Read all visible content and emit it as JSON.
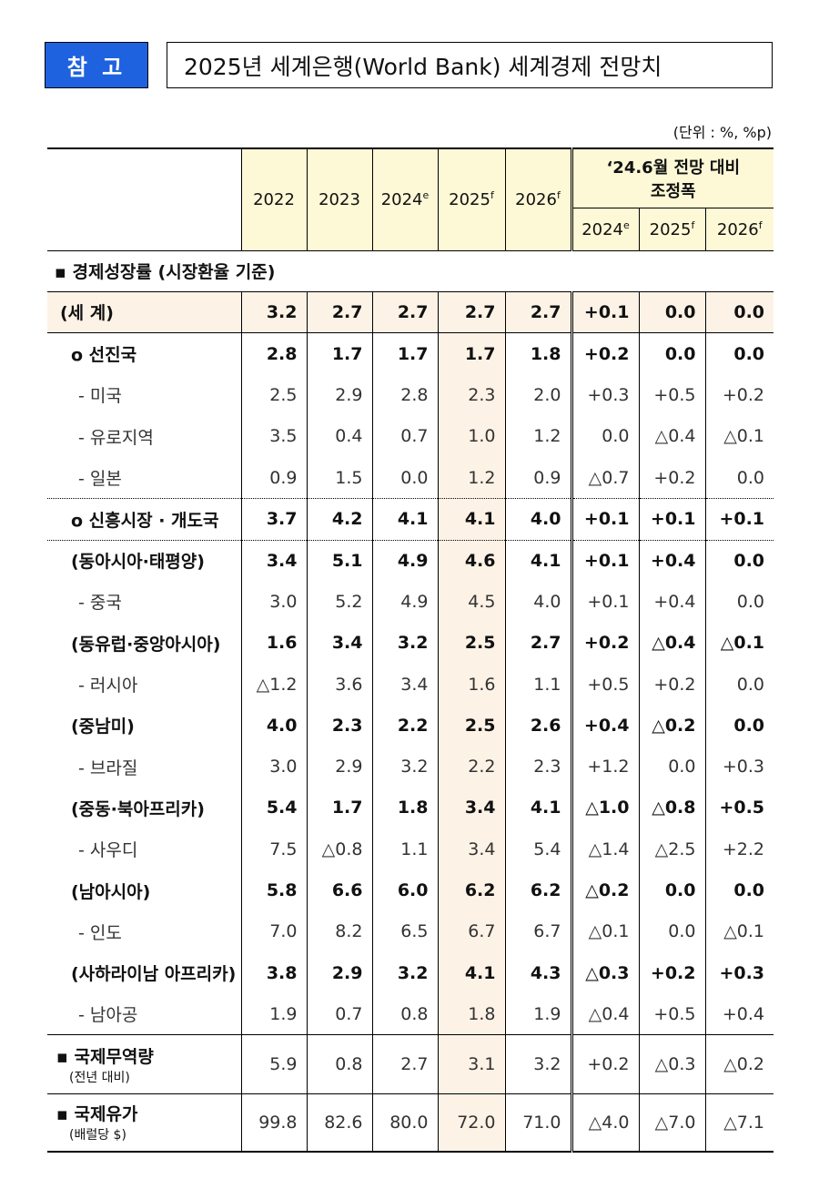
{
  "badge": "참 고",
  "title": "2025년 세계은행(World Bank) 세계경제 전망치",
  "unit": "(단위 : %, %p)",
  "table": {
    "columns": [
      {
        "text": "2022"
      },
      {
        "text": "2023"
      },
      {
        "text": "2024",
        "sup": "e"
      },
      {
        "text": "2025",
        "sup": "f"
      },
      {
        "text": "2026",
        "sup": "f"
      }
    ],
    "group": {
      "lines": [
        "‘24.6월 전망 대비",
        "조정폭"
      ],
      "columns": [
        {
          "text": "2024",
          "sup": "e"
        },
        {
          "text": "2025",
          "sup": "f"
        },
        {
          "text": "2026",
          "sup": "f"
        }
      ]
    },
    "section": {
      "title": "▪ 경제성장률",
      "note": "(시장환율 기준)"
    },
    "rows": [
      {
        "label": "(세   계)",
        "values": [
          "3.2",
          "2.7",
          "2.7",
          "2.7",
          "2.7",
          "+0.1",
          "0.0",
          "0.0"
        ]
      },
      {
        "label": "ο 선진국",
        "values": [
          "2.8",
          "1.7",
          "1.7",
          "1.7",
          "1.8",
          "+0.2",
          "0.0",
          "0.0"
        ]
      },
      {
        "label": "- 미국",
        "values": [
          "2.5",
          "2.9",
          "2.8",
          "2.3",
          "2.0",
          "+0.3",
          "+0.5",
          "+0.2"
        ]
      },
      {
        "label": "- 유로지역",
        "values": [
          "3.5",
          "0.4",
          "0.7",
          "1.0",
          "1.2",
          "0.0",
          "△0.4",
          "△0.1"
        ]
      },
      {
        "label": "- 일본",
        "values": [
          "0.9",
          "1.5",
          "0.0",
          "1.2",
          "0.9",
          "△0.7",
          "+0.2",
          "0.0"
        ]
      },
      {
        "label": "ο 신흥시장 · 개도국",
        "values": [
          "3.7",
          "4.2",
          "4.1",
          "4.1",
          "4.0",
          "+0.1",
          "+0.1",
          "+0.1"
        ]
      },
      {
        "label": "(동아시아·태평양)",
        "values": [
          "3.4",
          "5.1",
          "4.9",
          "4.6",
          "4.1",
          "+0.1",
          "+0.4",
          "0.0"
        ]
      },
      {
        "label": "- 중국",
        "values": [
          "3.0",
          "5.2",
          "4.9",
          "4.5",
          "4.0",
          "+0.1",
          "+0.4",
          "0.0"
        ]
      },
      {
        "label": "(동유럽·중앙아시아)",
        "values": [
          "1.6",
          "3.4",
          "3.2",
          "2.5",
          "2.7",
          "+0.2",
          "△0.4",
          "△0.1"
        ]
      },
      {
        "label": "- 러시아",
        "values": [
          "△1.2",
          "3.6",
          "3.4",
          "1.6",
          "1.1",
          "+0.5",
          "+0.2",
          "0.0"
        ]
      },
      {
        "label": "(중남미)",
        "values": [
          "4.0",
          "2.3",
          "2.2",
          "2.5",
          "2.6",
          "+0.4",
          "△0.2",
          "0.0"
        ]
      },
      {
        "label": "- 브라질",
        "values": [
          "3.0",
          "2.9",
          "3.2",
          "2.2",
          "2.3",
          "+1.2",
          "0.0",
          "+0.3"
        ]
      },
      {
        "label": "(중동·북아프리카)",
        "values": [
          "5.4",
          "1.7",
          "1.8",
          "3.4",
          "4.1",
          "△1.0",
          "△0.8",
          "+0.5"
        ]
      },
      {
        "label": "- 사우디",
        "values": [
          "7.5",
          "△0.8",
          "1.1",
          "3.4",
          "5.4",
          "△1.4",
          "△2.5",
          "+2.2"
        ]
      },
      {
        "label": "(남아시아)",
        "values": [
          "5.8",
          "6.6",
          "6.0",
          "6.2",
          "6.2",
          "△0.2",
          "0.0",
          "0.0"
        ]
      },
      {
        "label": "- 인도",
        "values": [
          "7.0",
          "8.2",
          "6.5",
          "6.7",
          "6.7",
          "△0.1",
          "0.0",
          "△0.1"
        ]
      },
      {
        "label": "(사하라이남 아프리카)",
        "values": [
          "3.8",
          "2.9",
          "3.2",
          "4.1",
          "4.3",
          "△0.3",
          "+0.2",
          "+0.3"
        ]
      },
      {
        "label": "- 남아공",
        "values": [
          "1.9",
          "0.7",
          "0.8",
          "1.8",
          "1.9",
          "△0.4",
          "+0.5",
          "+0.4"
        ]
      }
    ],
    "indicators": [
      {
        "label": "▪ 국제무역량",
        "note": "(전년 대비)",
        "values": [
          "5.9",
          "0.8",
          "2.7",
          "3.1",
          "3.2",
          "+0.2",
          "△0.3",
          "△0.2"
        ]
      },
      {
        "label": "▪ 국제유가",
        "note": "(배럴당 $)",
        "values": [
          "99.8",
          "82.6",
          "80.0",
          "72.0",
          "71.0",
          "△4.0",
          "△7.0",
          "△7.1"
        ]
      }
    ]
  }
}
